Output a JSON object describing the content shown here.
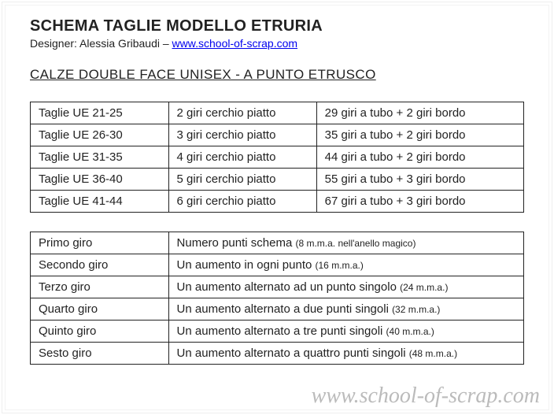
{
  "header": {
    "title": "SCHEMA TAGLIE MODELLO ETRURIA",
    "designer_prefix": "Designer: Alessia Gribaudi – ",
    "designer_link": "www.school-of-scrap.com",
    "subtitle": "CALZE DOUBLE FACE UNISEX -  A PUNTO ETRUSCO"
  },
  "table1": {
    "type": "table",
    "border_color": "#222222",
    "cell_fontsize": 15,
    "columns": [
      "size",
      "cerchio",
      "tubo"
    ],
    "col_widths_pct": [
      28,
      30,
      42
    ],
    "rows": [
      [
        "Taglie UE 21-25",
        "2 giri cerchio piatto",
        "29 giri a tubo + 2 giri bordo"
      ],
      [
        "Taglie UE 26-30",
        "3 giri cerchio piatto",
        "35 giri a tubo + 2 giri bordo"
      ],
      [
        "Taglie UE 31-35",
        "4 giri cerchio piatto",
        "44 giri a tubo + 2 giri bordo"
      ],
      [
        "Taglie UE 36-40",
        "5 giri cerchio piatto",
        "55 giri a tubo + 3 giri bordo"
      ],
      [
        "Taglie UE 41-44",
        "6 giri cerchio piatto",
        "67 giri a tubo + 3 giri bordo"
      ]
    ]
  },
  "table2": {
    "type": "table",
    "border_color": "#222222",
    "cell_fontsize": 15,
    "note_fontsize": 12,
    "columns": [
      "giro",
      "descrizione"
    ],
    "col_widths_pct": [
      28,
      72
    ],
    "rows": [
      {
        "c0": "Primo giro",
        "c1": "Numero punti schema ",
        "note": "(8 m.m.a. nell'anello magico)"
      },
      {
        "c0": "Secondo giro",
        "c1": "Un aumento in ogni punto ",
        "note": "(16 m.m.a.)"
      },
      {
        "c0": "Terzo giro",
        "c1": "Un aumento alternato ad un punto singolo ",
        "note": "(24 m.m.a.)"
      },
      {
        "c0": "Quarto giro",
        "c1": "Un aumento alternato a due punti singoli ",
        "note": "(32 m.m.a.)"
      },
      {
        "c0": "Quinto giro",
        "c1": "Un aumento alternato a tre punti singoli ",
        "note": "(40 m.m.a.)"
      },
      {
        "c0": "Sesto giro",
        "c1": "Un aumento alternato a quattro punti singoli ",
        "note": "(48 m.m.a.)"
      }
    ]
  },
  "watermark": "www.school-of-scrap.com",
  "colors": {
    "background": "#ffffff",
    "text": "#222222",
    "link": "#0000ee",
    "border": "#222222",
    "watermark": "rgba(180,180,180,0.9)"
  }
}
